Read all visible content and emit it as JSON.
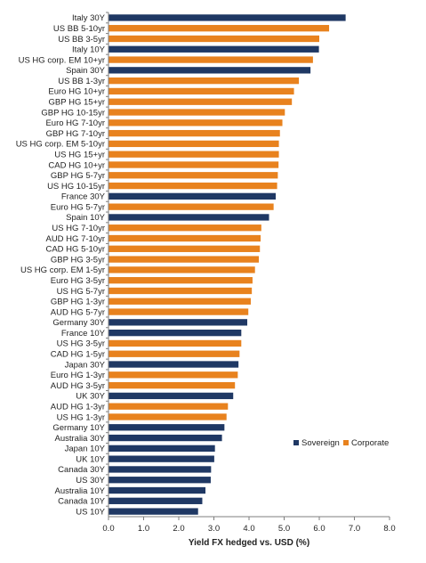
{
  "chart_data": {
    "type": "bar",
    "orientation": "horizontal",
    "xlabel": "Yield FX hedged vs. USD (%)",
    "xlim": [
      0,
      8
    ],
    "xticks": [
      "0.0",
      "1.0",
      "2.0",
      "3.0",
      "4.0",
      "5.0",
      "6.0",
      "7.0",
      "8.0"
    ],
    "grid": false,
    "legend": {
      "placement": "lower-right",
      "entries": [
        {
          "name": "Sovereign",
          "color": "#1f3864"
        },
        {
          "name": "Corporate",
          "color": "#e8821e"
        }
      ]
    },
    "categories": [
      "Italy 30Y",
      "US BB 5-10yr",
      "US BB 3-5yr",
      "Italy 10Y",
      "US HG corp. EM 10+yr",
      "Spain 30Y",
      "US BB 1-3yr",
      "Euro HG 10+yr",
      "GBP HG 15+yr",
      "GBP HG 10-15yr",
      "Euro HG 7-10yr",
      "GBP HG 7-10yr",
      "US HG corp. EM 5-10yr",
      "US HG 15+yr",
      "CAD HG 10+yr",
      "GBP HG 5-7yr",
      "US HG 10-15yr",
      "France 30Y",
      "Euro HG 5-7yr",
      "Spain 10Y",
      "US HG 7-10yr",
      "AUD HG 7-10yr",
      "CAD HG 5-10yr",
      "GBP HG 3-5yr",
      "US HG corp. EM 1-5yr",
      "Euro HG 3-5yr",
      "US HG 5-7yr",
      "GBP HG 1-3yr",
      "AUD HG 5-7yr",
      "Germany 30Y",
      "France 10Y",
      "US HG 3-5yr",
      "CAD HG 1-5yr",
      "Japan 30Y",
      "Euro HG 1-3yr",
      "AUD HG 3-5yr",
      "UK 30Y",
      "AUD HG 1-3yr",
      "US HG 1-3yr",
      "Germany 10Y",
      "Australia 30Y",
      "Japan 10Y",
      "UK 10Y",
      "Canada 30Y",
      "US 30Y",
      "Australia 10Y",
      "Canada 10Y",
      "US 10Y"
    ],
    "values": [
      6.75,
      6.28,
      6.0,
      5.99,
      5.82,
      5.75,
      5.42,
      5.28,
      5.22,
      5.02,
      4.95,
      4.88,
      4.85,
      4.85,
      4.84,
      4.82,
      4.8,
      4.76,
      4.7,
      4.57,
      4.35,
      4.33,
      4.31,
      4.28,
      4.17,
      4.1,
      4.08,
      4.05,
      3.98,
      3.95,
      3.78,
      3.78,
      3.73,
      3.7,
      3.68,
      3.6,
      3.55,
      3.4,
      3.36,
      3.3,
      3.23,
      3.03,
      3.01,
      2.92,
      2.91,
      2.76,
      2.67,
      2.55
    ],
    "types": [
      "Sovereign",
      "Corporate",
      "Corporate",
      "Sovereign",
      "Corporate",
      "Sovereign",
      "Corporate",
      "Corporate",
      "Corporate",
      "Corporate",
      "Corporate",
      "Corporate",
      "Corporate",
      "Corporate",
      "Corporate",
      "Corporate",
      "Corporate",
      "Sovereign",
      "Corporate",
      "Sovereign",
      "Corporate",
      "Corporate",
      "Corporate",
      "Corporate",
      "Corporate",
      "Corporate",
      "Corporate",
      "Corporate",
      "Corporate",
      "Sovereign",
      "Sovereign",
      "Corporate",
      "Corporate",
      "Sovereign",
      "Corporate",
      "Corporate",
      "Sovereign",
      "Corporate",
      "Corporate",
      "Sovereign",
      "Sovereign",
      "Sovereign",
      "Sovereign",
      "Sovereign",
      "Sovereign",
      "Sovereign",
      "Sovereign",
      "Sovereign"
    ]
  }
}
